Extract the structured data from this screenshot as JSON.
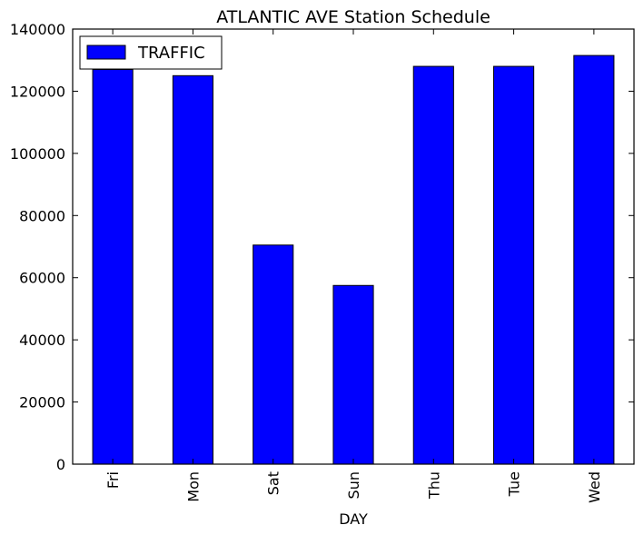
{
  "chart_data": {
    "type": "bar",
    "title": "ATLANTIC AVE Station Schedule",
    "xlabel": "DAY",
    "ylabel": "",
    "categories": [
      "Fri",
      "Mon",
      "Sat",
      "Sun",
      "Thu",
      "Tue",
      "Wed"
    ],
    "series": [
      {
        "name": "TRAFFIC",
        "values": [
          127000,
          125000,
          70500,
          57500,
          128000,
          128000,
          131500
        ]
      }
    ],
    "ylim": [
      0,
      140000
    ],
    "yticks": [
      0,
      20000,
      40000,
      60000,
      80000,
      100000,
      120000,
      140000
    ],
    "legend": "top-left",
    "grid": false,
    "colors": {
      "bar": "#0000ff",
      "edge": "#000000"
    }
  }
}
